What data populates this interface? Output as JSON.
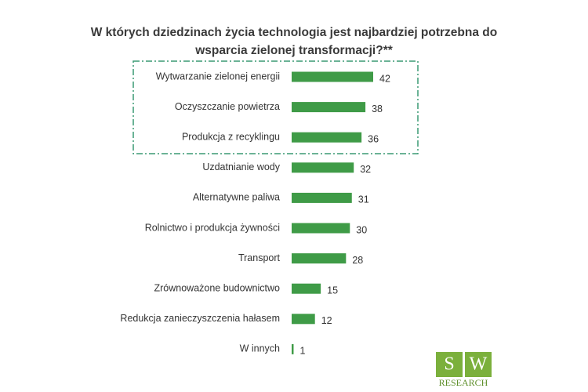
{
  "chart_data": {
    "type": "bar",
    "orientation": "horizontal",
    "title": "W których dziedzinach życia technologia jest najbardziej potrzebna do wsparcia zielonej transformacji?**",
    "categories": [
      "Wytwarzanie zielonej energii",
      "Oczyszczanie powietrza",
      "Produkcja z recyklingu",
      "Uzdatnianie wody",
      "Alternatywne paliwa",
      "Rolnictwo i produkcja żywności",
      "Transport",
      "Zrównoważone budownictwo",
      "Redukcja zanieczyszczenia hałasem",
      "W innych"
    ],
    "values": [
      42,
      38,
      36,
      32,
      31,
      30,
      28,
      15,
      12,
      1
    ],
    "color": "#3f9b47"
  },
  "logo": {
    "letters": [
      "S",
      "W"
    ],
    "text": "RESEARCH"
  }
}
